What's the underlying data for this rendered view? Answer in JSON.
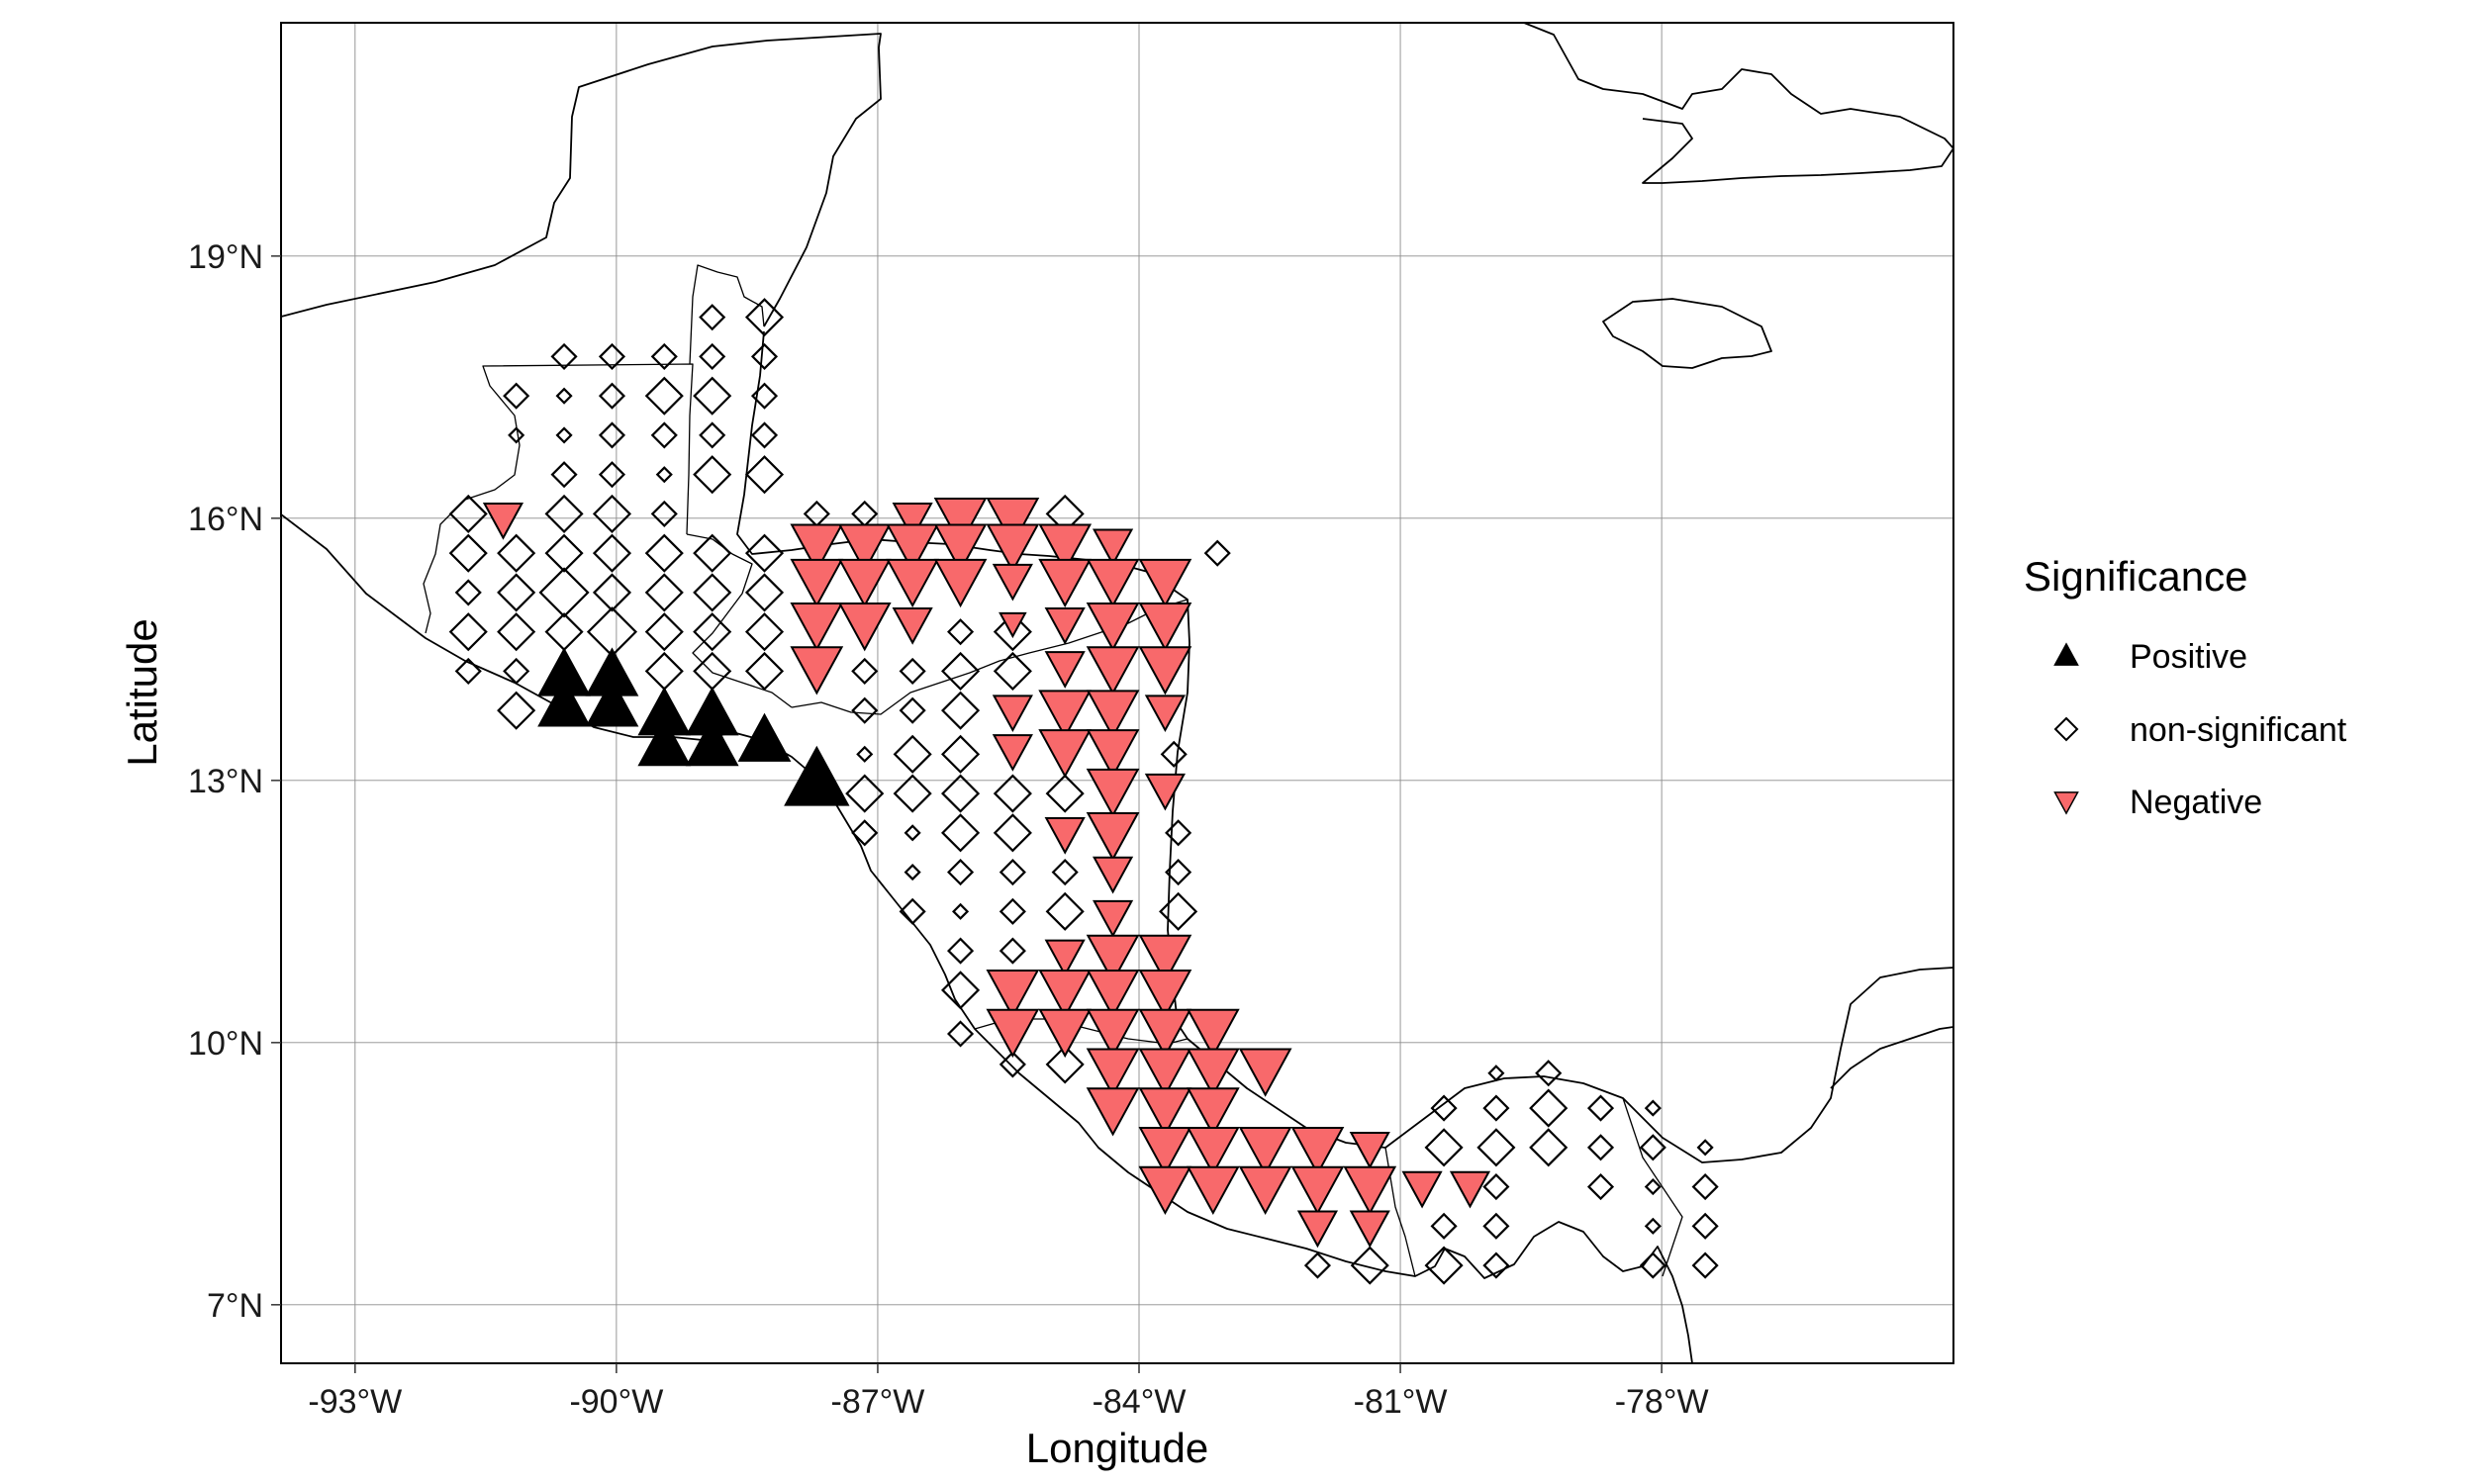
{
  "chart_data": {
    "type": "scatter",
    "xlabel": "Longitude",
    "ylabel": "Latitude",
    "xlim": [
      -93.85,
      -74.65
    ],
    "ylim": [
      6.33,
      21.67
    ],
    "x_ticks": [
      -93,
      -90,
      -87,
      -84,
      -81,
      -78
    ],
    "x_tick_labels": [
      "-93°W",
      "-90°W",
      "-87°W",
      "-84°W",
      "-81°W",
      "-78°W"
    ],
    "y_ticks": [
      7,
      10,
      13,
      16,
      19
    ],
    "y_tick_labels": [
      "7°N",
      "10°N",
      "13°N",
      "16°N",
      "19°N"
    ],
    "grid": true,
    "legend": {
      "title": "Significance",
      "placement": "right",
      "entries": [
        {
          "label": "Positive",
          "symbol": "triangle-up",
          "fill": "#000000"
        },
        {
          "label": "non-significant",
          "symbol": "diamond",
          "fill": "none"
        },
        {
          "label": "Negative",
          "symbol": "triangle-down",
          "fill": "#F8696B"
        }
      ]
    },
    "colors": {
      "positive": "#000000",
      "negative": "#F8696B",
      "nonsignificant_stroke": "#000000"
    },
    "points": {
      "positive": [
        [
          -90.6,
          14.2,
          3
        ],
        [
          -90.05,
          14.2,
          3
        ],
        [
          -90.6,
          13.85,
          3
        ],
        [
          -90.05,
          13.85,
          3
        ],
        [
          -89.45,
          13.75,
          3
        ],
        [
          -88.9,
          13.75,
          3
        ],
        [
          -89.45,
          13.4,
          3
        ],
        [
          -88.9,
          13.4,
          3
        ],
        [
          -88.3,
          13.45,
          3
        ],
        [
          -87.7,
          13.0,
          4
        ]
      ],
      "negative": [
        [
          -91.3,
          16.0,
          2
        ],
        [
          -86.6,
          16.0,
          2
        ],
        [
          -86.05,
          16.0,
          3
        ],
        [
          -85.45,
          16.0,
          3
        ],
        [
          -87.7,
          15.7,
          3
        ],
        [
          -87.15,
          15.7,
          3
        ],
        [
          -86.6,
          15.7,
          3
        ],
        [
          -86.05,
          15.7,
          3
        ],
        [
          -85.45,
          15.7,
          3
        ],
        [
          -84.85,
          15.7,
          3
        ],
        [
          -84.3,
          15.7,
          2
        ],
        [
          -87.7,
          15.3,
          3
        ],
        [
          -87.15,
          15.3,
          3
        ],
        [
          -86.6,
          15.3,
          3
        ],
        [
          -86.05,
          15.3,
          3
        ],
        [
          -85.45,
          15.3,
          2
        ],
        [
          -84.85,
          15.3,
          3
        ],
        [
          -84.3,
          15.3,
          3
        ],
        [
          -83.7,
          15.3,
          3
        ],
        [
          -87.7,
          14.8,
          3
        ],
        [
          -87.15,
          14.8,
          3
        ],
        [
          -86.6,
          14.8,
          2
        ],
        [
          -85.45,
          14.8,
          1
        ],
        [
          -84.85,
          14.8,
          2
        ],
        [
          -84.3,
          14.8,
          3
        ],
        [
          -83.7,
          14.8,
          3
        ],
        [
          -87.7,
          14.3,
          3
        ],
        [
          -84.85,
          14.3,
          2
        ],
        [
          -84.3,
          14.3,
          3
        ],
        [
          -83.7,
          14.3,
          3
        ],
        [
          -85.45,
          13.8,
          2
        ],
        [
          -84.85,
          13.8,
          3
        ],
        [
          -84.3,
          13.8,
          3
        ],
        [
          -83.7,
          13.8,
          2
        ],
        [
          -85.45,
          13.35,
          2
        ],
        [
          -84.85,
          13.35,
          3
        ],
        [
          -84.3,
          13.35,
          3
        ],
        [
          -84.3,
          12.9,
          3
        ],
        [
          -83.7,
          12.9,
          2
        ],
        [
          -84.85,
          12.4,
          2
        ],
        [
          -84.3,
          12.4,
          3
        ],
        [
          -84.3,
          11.95,
          2
        ],
        [
          -84.3,
          11.45,
          2
        ],
        [
          -84.85,
          11.0,
          2
        ],
        [
          -84.3,
          11.0,
          3
        ],
        [
          -83.7,
          11.0,
          3
        ],
        [
          -85.45,
          10.6,
          3
        ],
        [
          -84.85,
          10.6,
          3
        ],
        [
          -84.3,
          10.6,
          3
        ],
        [
          -83.7,
          10.6,
          3
        ],
        [
          -85.45,
          10.15,
          3
        ],
        [
          -84.85,
          10.15,
          3
        ],
        [
          -84.3,
          10.15,
          3
        ],
        [
          -83.7,
          10.15,
          3
        ],
        [
          -83.15,
          10.15,
          3
        ],
        [
          -84.3,
          9.7,
          3
        ],
        [
          -83.7,
          9.7,
          3
        ],
        [
          -83.15,
          9.7,
          3
        ],
        [
          -82.55,
          9.7,
          3
        ],
        [
          -84.3,
          9.25,
          3
        ],
        [
          -83.7,
          9.25,
          3
        ],
        [
          -83.15,
          9.25,
          3
        ],
        [
          -83.7,
          8.8,
          3
        ],
        [
          -83.15,
          8.8,
          3
        ],
        [
          -82.55,
          8.8,
          3
        ],
        [
          -81.95,
          8.8,
          3
        ],
        [
          -81.35,
          8.8,
          2
        ],
        [
          -83.7,
          8.35,
          3
        ],
        [
          -83.15,
          8.35,
          3
        ],
        [
          -82.55,
          8.35,
          3
        ],
        [
          -81.95,
          8.35,
          3
        ],
        [
          -81.35,
          8.35,
          3
        ],
        [
          -80.75,
          8.35,
          2
        ],
        [
          -80.2,
          8.35,
          2
        ],
        [
          -81.95,
          7.9,
          2
        ],
        [
          -81.35,
          7.9,
          2
        ]
      ],
      "nonsignificant": [
        [
          -90.6,
          17.85,
          1
        ],
        [
          -90.05,
          17.85,
          1
        ],
        [
          -89.45,
          17.85,
          1
        ],
        [
          -88.9,
          18.3,
          1
        ],
        [
          -88.3,
          18.3,
          2
        ],
        [
          -91.15,
          17.4,
          1
        ],
        [
          -90.6,
          17.4,
          0
        ],
        [
          -90.05,
          17.4,
          1
        ],
        [
          -89.45,
          17.4,
          2
        ],
        [
          -88.9,
          17.85,
          1
        ],
        [
          -88.3,
          17.85,
          1
        ],
        [
          -91.15,
          16.95,
          0
        ],
        [
          -90.6,
          16.95,
          0
        ],
        [
          -90.05,
          16.95,
          1
        ],
        [
          -89.45,
          16.95,
          1
        ],
        [
          -88.9,
          17.4,
          2
        ],
        [
          -88.3,
          17.4,
          1
        ],
        [
          -90.6,
          16.5,
          1
        ],
        [
          -90.05,
          16.5,
          1
        ],
        [
          -89.45,
          16.5,
          0
        ],
        [
          -88.9,
          16.95,
          1
        ],
        [
          -88.3,
          16.95,
          1
        ],
        [
          -91.7,
          16.05,
          2
        ],
        [
          -90.6,
          16.05,
          2
        ],
        [
          -90.05,
          16.05,
          2
        ],
        [
          -89.45,
          16.05,
          1
        ],
        [
          -88.9,
          16.5,
          2
        ],
        [
          -88.3,
          16.5,
          2
        ],
        [
          -87.7,
          16.05,
          1
        ],
        [
          -87.15,
          16.05,
          1
        ],
        [
          -84.85,
          16.05,
          2
        ],
        [
          -91.7,
          15.6,
          2
        ],
        [
          -91.15,
          15.6,
          2
        ],
        [
          -90.6,
          15.6,
          2
        ],
        [
          -90.05,
          15.6,
          2
        ],
        [
          -89.45,
          15.6,
          2
        ],
        [
          -88.9,
          15.6,
          2
        ],
        [
          -88.3,
          15.6,
          2
        ],
        [
          -83.1,
          15.6,
          1
        ],
        [
          -91.7,
          15.15,
          1
        ],
        [
          -91.15,
          15.15,
          2
        ],
        [
          -90.6,
          15.15,
          3
        ],
        [
          -90.05,
          15.15,
          2
        ],
        [
          -89.45,
          15.15,
          2
        ],
        [
          -88.9,
          15.15,
          2
        ],
        [
          -88.3,
          15.15,
          2
        ],
        [
          -91.7,
          14.7,
          2
        ],
        [
          -91.15,
          14.7,
          2
        ],
        [
          -90.6,
          14.7,
          2
        ],
        [
          -90.05,
          14.7,
          3
        ],
        [
          -89.45,
          14.7,
          2
        ],
        [
          -88.9,
          14.7,
          2
        ],
        [
          -88.3,
          14.7,
          2
        ],
        [
          -86.05,
          14.7,
          1
        ],
        [
          -85.45,
          14.7,
          2
        ],
        [
          -91.7,
          14.25,
          1
        ],
        [
          -91.15,
          14.25,
          1
        ],
        [
          -89.45,
          14.25,
          2
        ],
        [
          -88.9,
          14.25,
          2
        ],
        [
          -88.3,
          14.25,
          2
        ],
        [
          -87.15,
          14.25,
          1
        ],
        [
          -86.6,
          14.25,
          1
        ],
        [
          -86.05,
          14.25,
          2
        ],
        [
          -85.45,
          14.25,
          2
        ],
        [
          -91.15,
          13.8,
          2
        ],
        [
          -87.15,
          13.8,
          1
        ],
        [
          -86.6,
          13.8,
          1
        ],
        [
          -86.05,
          13.8,
          2
        ],
        [
          -87.15,
          13.3,
          0
        ],
        [
          -86.6,
          13.3,
          2
        ],
        [
          -86.05,
          13.3,
          2
        ],
        [
          -83.6,
          13.3,
          1
        ],
        [
          -87.15,
          12.85,
          2
        ],
        [
          -86.6,
          12.85,
          2
        ],
        [
          -86.05,
          12.85,
          2
        ],
        [
          -85.45,
          12.85,
          2
        ],
        [
          -84.85,
          12.85,
          2
        ],
        [
          -87.15,
          12.4,
          1
        ],
        [
          -86.6,
          12.4,
          0
        ],
        [
          -86.05,
          12.4,
          2
        ],
        [
          -85.45,
          12.4,
          2
        ],
        [
          -83.55,
          12.4,
          1
        ],
        [
          -86.6,
          11.95,
          0
        ],
        [
          -86.05,
          11.95,
          1
        ],
        [
          -85.45,
          11.95,
          1
        ],
        [
          -84.85,
          11.95,
          1
        ],
        [
          -83.55,
          11.95,
          1
        ],
        [
          -86.6,
          11.5,
          1
        ],
        [
          -86.05,
          11.5,
          0
        ],
        [
          -85.45,
          11.5,
          1
        ],
        [
          -84.85,
          11.5,
          2
        ],
        [
          -83.55,
          11.5,
          2
        ],
        [
          -86.05,
          11.05,
          1
        ],
        [
          -85.45,
          11.05,
          1
        ],
        [
          -86.05,
          10.6,
          2
        ],
        [
          -85.45,
          10.15,
          1
        ],
        [
          -86.05,
          10.1,
          1
        ],
        [
          -85.45,
          9.75,
          1
        ],
        [
          -84.85,
          9.75,
          2
        ],
        [
          -80.5,
          9.25,
          1
        ],
        [
          -79.9,
          9.25,
          1
        ],
        [
          -79.3,
          9.25,
          2
        ],
        [
          -78.7,
          9.25,
          1
        ],
        [
          -78.1,
          9.25,
          0
        ],
        [
          -79.9,
          9.65,
          0
        ],
        [
          -79.3,
          9.65,
          1
        ],
        [
          -80.5,
          8.8,
          2
        ],
        [
          -79.9,
          8.8,
          2
        ],
        [
          -79.3,
          8.8,
          2
        ],
        [
          -78.7,
          8.8,
          1
        ],
        [
          -78.1,
          8.8,
          1
        ],
        [
          -77.5,
          8.8,
          0
        ],
        [
          -79.9,
          8.35,
          1
        ],
        [
          -78.7,
          8.35,
          1
        ],
        [
          -78.1,
          8.35,
          0
        ],
        [
          -77.5,
          8.35,
          1
        ],
        [
          -80.5,
          7.9,
          1
        ],
        [
          -79.9,
          7.9,
          1
        ],
        [
          -78.1,
          7.9,
          0
        ],
        [
          -77.5,
          7.9,
          1
        ],
        [
          -81.95,
          7.45,
          1
        ],
        [
          -81.35,
          7.45,
          2
        ],
        [
          -80.5,
          7.45,
          2
        ],
        [
          -79.9,
          7.45,
          1
        ],
        [
          -78.1,
          7.45,
          1
        ],
        [
          -77.5,
          7.45,
          1
        ]
      ]
    }
  }
}
